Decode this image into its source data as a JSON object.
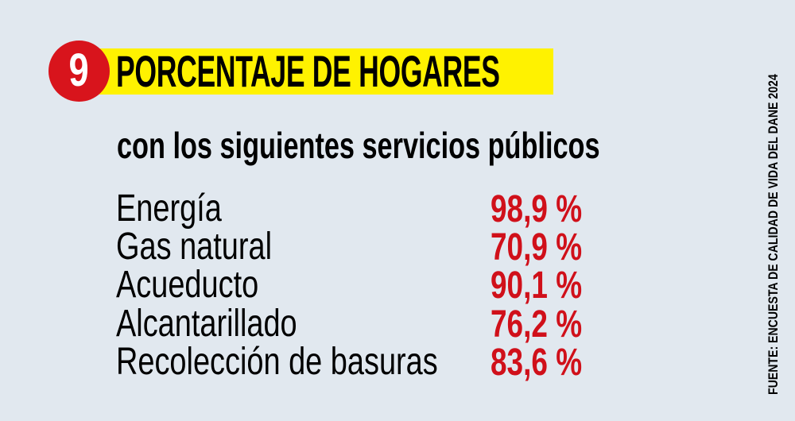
{
  "header": {
    "badge_number": "9",
    "title": "PORCENTAJE DE HOGARES",
    "subtitle": "con los siguientes servicios públicos"
  },
  "colors": {
    "background": "#e1e8ef",
    "badge": "#d8141c",
    "title_highlight": "#fff200",
    "value_text": "#d0101a",
    "label_text": "#000000"
  },
  "services": [
    {
      "label": "Energía",
      "value": "98,9 %"
    },
    {
      "label": "Gas natural",
      "value": "70,9 %"
    },
    {
      "label": "Acueducto",
      "value": "90,1 %"
    },
    {
      "label": "Alcantarillado",
      "value": "76,2 %"
    },
    {
      "label": "Recolección de basuras",
      "value": "83,6 %"
    }
  ],
  "source": "FUENTE: ENCUESTA DE CALIDAD DE VIDA DEL DANE 2024"
}
